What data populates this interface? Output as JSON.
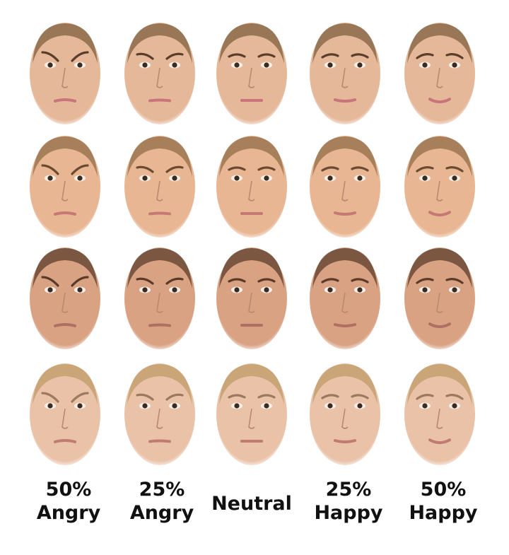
{
  "columns": [
    {
      "id": "angry50",
      "line1": "50%",
      "line2": "Angry"
    },
    {
      "id": "angry25",
      "line1": "25%",
      "line2": "Angry"
    },
    {
      "id": "neutral",
      "line1": "",
      "line2": "Neutral"
    },
    {
      "id": "happy25",
      "line1": "25%",
      "line2": "Happy"
    },
    {
      "id": "happy50",
      "line1": "50%",
      "line2": "Happy"
    }
  ],
  "rows": [
    {
      "id": "female-1",
      "skin": "#e6b89a",
      "hair": "#8a6a4a",
      "brow": "#5a3e2a",
      "lip": "#c8747a"
    },
    {
      "id": "female-2",
      "skin": "#e8b692",
      "hair": "#9b7550",
      "brow": "#6a4a30",
      "lip": "#c47a72"
    },
    {
      "id": "male-1",
      "skin": "#d9a283",
      "hair": "#6a4a36",
      "brow": "#5a3a28",
      "lip": "#b06f64"
    },
    {
      "id": "male-2",
      "skin": "#eac2a8",
      "hair": "#c4a070",
      "brow": "#9a7a5a",
      "lip": "#c07c72"
    }
  ],
  "expressions": [
    {
      "brow_tilt": 6,
      "mouth_curve": -3
    },
    {
      "brow_tilt": 3,
      "mouth_curve": -1.5
    },
    {
      "brow_tilt": 0,
      "mouth_curve": 0
    },
    {
      "brow_tilt": -1,
      "mouth_curve": 3
    },
    {
      "brow_tilt": -2,
      "mouth_curve": 6
    }
  ]
}
